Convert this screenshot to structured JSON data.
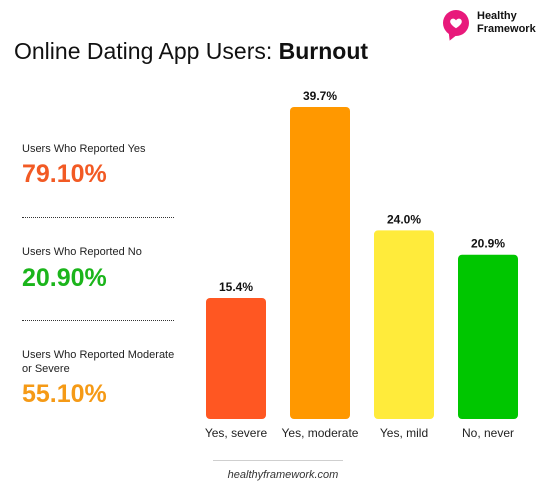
{
  "header": {
    "title_regular": "Online Dating App Users: ",
    "title_bold": "Burnout",
    "brand_line1": "Healthy",
    "brand_line2": "Framework"
  },
  "stats": [
    {
      "label": "Users Who Reported Yes",
      "value": "79.10%",
      "color": "#f25a24"
    },
    {
      "label": "Users Who Reported No",
      "value": "20.90%",
      "color": "#1bb51b"
    },
    {
      "label": "Users Who Reported Moderate or Severe",
      "value": "55.10%",
      "color": "#f59a16"
    }
  ],
  "footer": {
    "text": "healthyframework.com"
  },
  "chart_data": {
    "type": "bar",
    "categories": [
      "Yes, severe",
      "Yes, moderate",
      "Yes, mild",
      "No, never"
    ],
    "values": [
      15.4,
      39.7,
      24.0,
      20.9
    ],
    "data_labels": [
      "15.4%",
      "39.7%",
      "24.0%",
      "20.9%"
    ],
    "colors": [
      "#ff5722",
      "#ff9800",
      "#ffeb3b",
      "#00c600"
    ],
    "title": "",
    "xlabel": "",
    "ylabel": "",
    "ylim": [
      0,
      39.7
    ],
    "grid": false,
    "legend": "none"
  }
}
